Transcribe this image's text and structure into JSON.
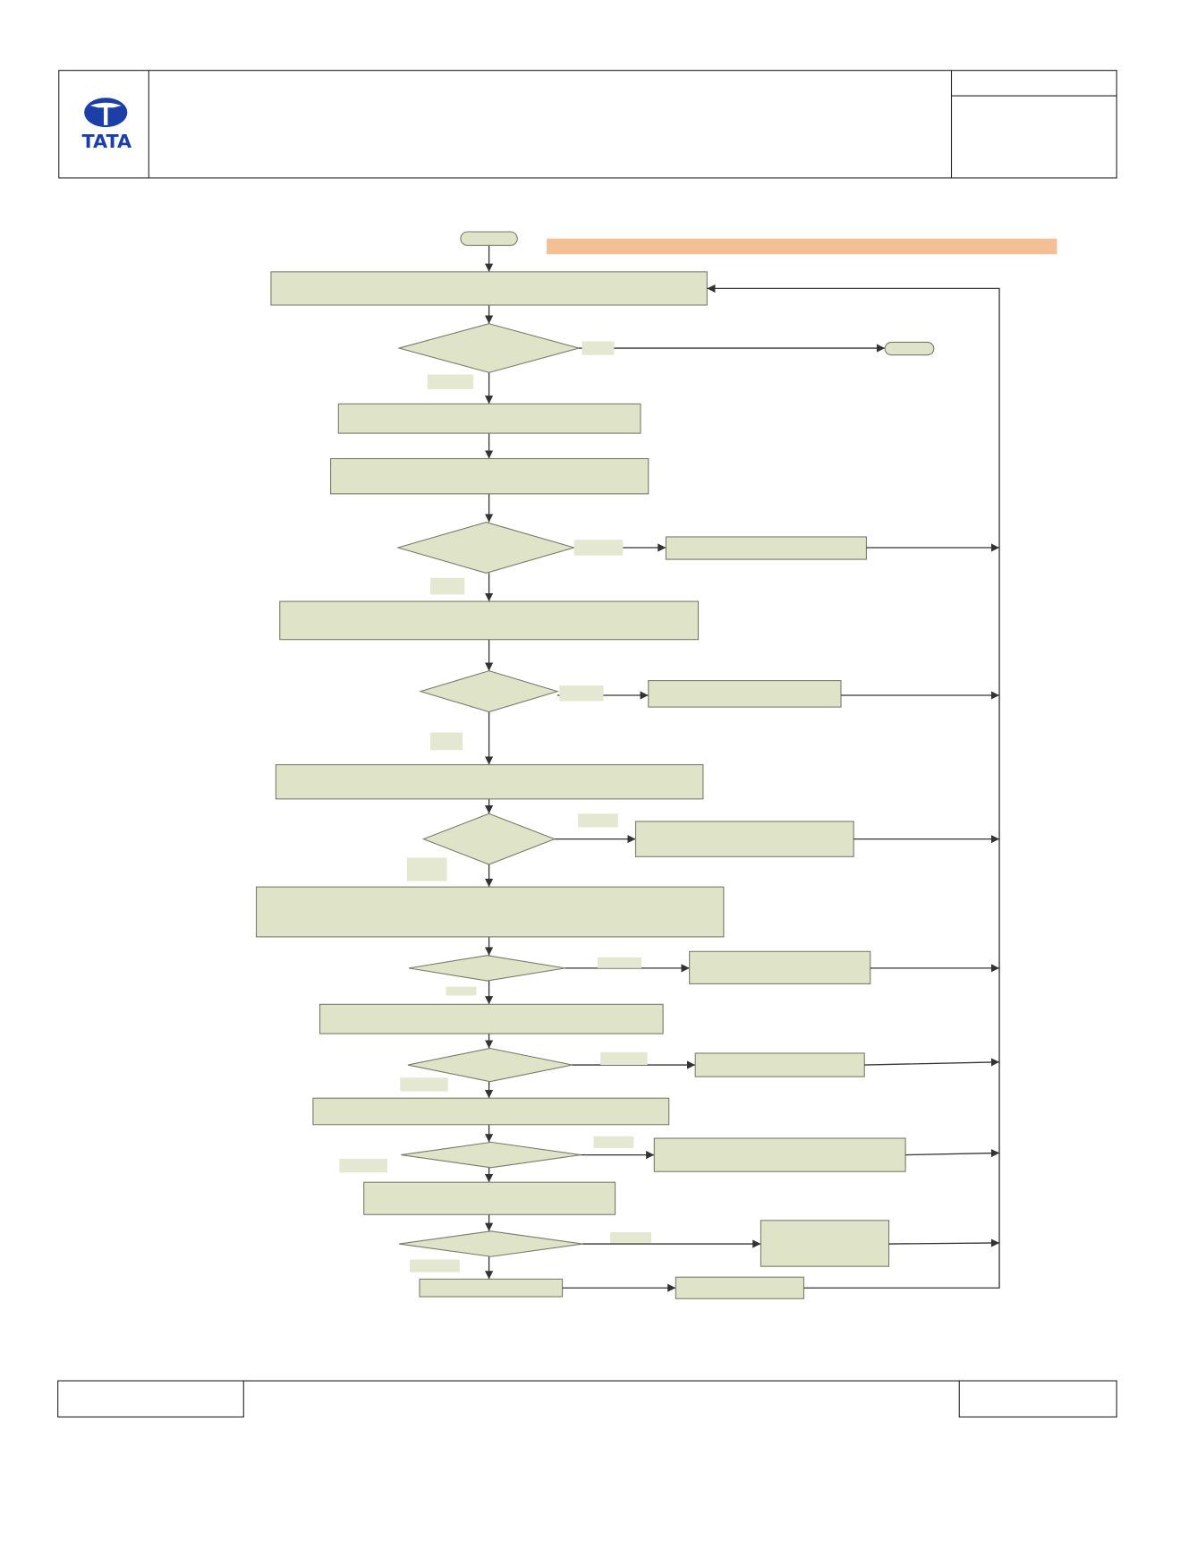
{
  "header": {
    "logo_text": "TATA"
  }
}
